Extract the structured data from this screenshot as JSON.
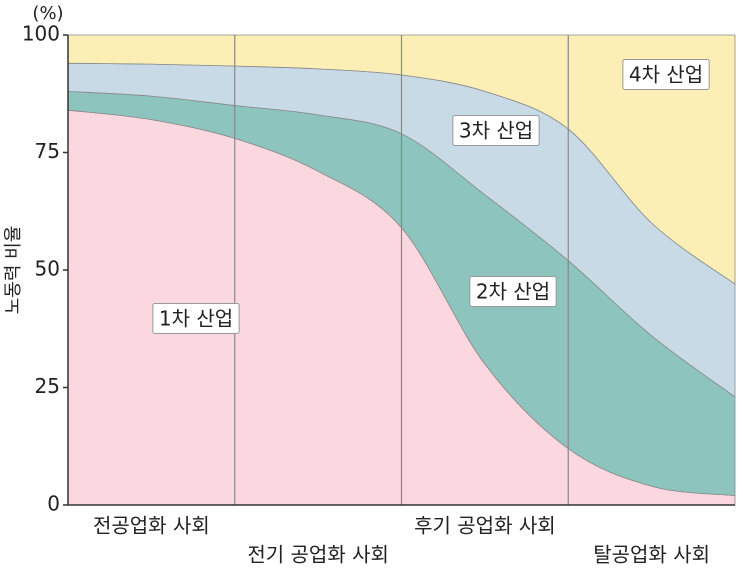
{
  "chart_data": {
    "type": "stacked-area",
    "y_label": "노동력 비율",
    "y_unit": "(%)",
    "categories": [
      null,
      "전공업화 사회",
      null,
      "전기 공업화 사회",
      null,
      "후기 공업화 사회",
      null,
      "탈공업화 사회",
      null
    ],
    "series": [
      {
        "name": "1차 산업",
        "color": "#fbd7df",
        "values": [
          84,
          82,
          78,
          71,
          59,
          30,
          12,
          4,
          2
        ]
      },
      {
        "name": "2차 산업",
        "color": "#8dc5be",
        "values": [
          4,
          5,
          7,
          12,
          20,
          36,
          40,
          32,
          21
        ]
      },
      {
        "name": "3차 산업",
        "color": "#c8dae5",
        "values": [
          6,
          6.8,
          8.4,
          9.8,
          12.5,
          22,
          28,
          24,
          24
        ]
      },
      {
        "name": "4차 산업",
        "color": "#fbefb6",
        "values": [
          6,
          6.2,
          6.6,
          7.2,
          8.5,
          12,
          20,
          40,
          53
        ]
      }
    ],
    "ylim": [
      0,
      100
    ],
    "yticks": [
      0,
      25,
      50,
      75,
      100
    ]
  }
}
